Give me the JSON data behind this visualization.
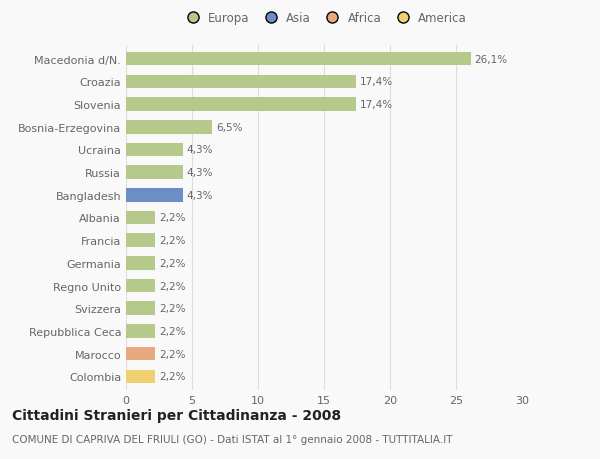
{
  "categories": [
    "Macedonia d/N.",
    "Croazia",
    "Slovenia",
    "Bosnia-Erzegovina",
    "Ucraina",
    "Russia",
    "Bangladesh",
    "Albania",
    "Francia",
    "Germania",
    "Regno Unito",
    "Svizzera",
    "Repubblica Ceca",
    "Marocco",
    "Colombia"
  ],
  "values": [
    26.1,
    17.4,
    17.4,
    6.5,
    4.3,
    4.3,
    4.3,
    2.2,
    2.2,
    2.2,
    2.2,
    2.2,
    2.2,
    2.2,
    2.2
  ],
  "labels": [
    "26,1%",
    "17,4%",
    "17,4%",
    "6,5%",
    "4,3%",
    "4,3%",
    "4,3%",
    "2,2%",
    "2,2%",
    "2,2%",
    "2,2%",
    "2,2%",
    "2,2%",
    "2,2%",
    "2,2%"
  ],
  "colors": [
    "#b5c98a",
    "#b5c98a",
    "#b5c98a",
    "#b5c98a",
    "#b5c98a",
    "#b5c98a",
    "#6b8fc4",
    "#b5c98a",
    "#b5c98a",
    "#b5c98a",
    "#b5c98a",
    "#b5c98a",
    "#b5c98a",
    "#e8a97e",
    "#f0d070"
  ],
  "legend_labels": [
    "Europa",
    "Asia",
    "Africa",
    "America"
  ],
  "legend_colors": [
    "#b5c98a",
    "#6b8fc4",
    "#e8a97e",
    "#f0d070"
  ],
  "title": "Cittadini Stranieri per Cittadinanza - 2008",
  "subtitle": "COMUNE DI CAPRIVA DEL FRIULI (GO) - Dati ISTAT al 1° gennaio 2008 - TUTTITALIA.IT",
  "xlim": [
    0,
    30
  ],
  "xticks": [
    0,
    5,
    10,
    15,
    20,
    25,
    30
  ],
  "background_color": "#f9f9f9",
  "grid_color": "#dddddd",
  "bar_height": 0.6,
  "title_fontsize": 10,
  "subtitle_fontsize": 7.5,
  "label_fontsize": 7.5,
  "tick_fontsize": 8,
  "legend_fontsize": 8.5,
  "text_color": "#666666",
  "title_color": "#222222"
}
